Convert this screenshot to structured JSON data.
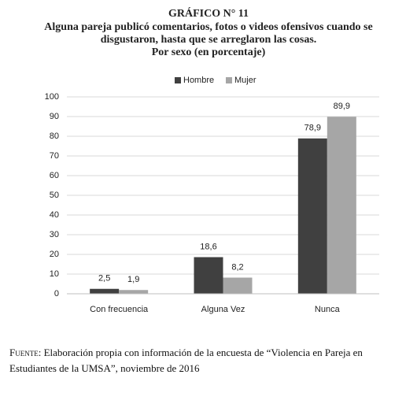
{
  "chart_data": {
    "type": "bar",
    "title": "GRÁFICO N° 11",
    "subtitle": [
      "Alguna pareja publicó comentarios, fotos o videos ofensivos cuando se",
      "disgustaron, hasta que se arreglaron las cosas.",
      "Por sexo (en porcentaje)"
    ],
    "categories": [
      "Con frecuencia",
      "Alguna Vez",
      "Nunca"
    ],
    "series": [
      {
        "name": "Hombre",
        "color": "#404040",
        "values": [
          2.5,
          18.6,
          78.9
        ],
        "value_labels": [
          "2,5",
          "18,6",
          "78,9"
        ]
      },
      {
        "name": "Mujer",
        "color": "#a6a6a6",
        "values": [
          1.9,
          8.2,
          89.9
        ],
        "value_labels": [
          "1,9",
          "8,2",
          "89,9"
        ]
      }
    ],
    "ylim": [
      0,
      100
    ],
    "yticks": [
      0,
      10,
      20,
      30,
      40,
      50,
      60,
      70,
      80,
      90,
      100
    ],
    "grid": true,
    "legend": "top"
  },
  "source_label": "Fuente",
  "source_text": ": Elaboración propia con información de la encuesta de “Violencia en Pareja en Estudiantes de la UMSA”, noviembre de 2016"
}
